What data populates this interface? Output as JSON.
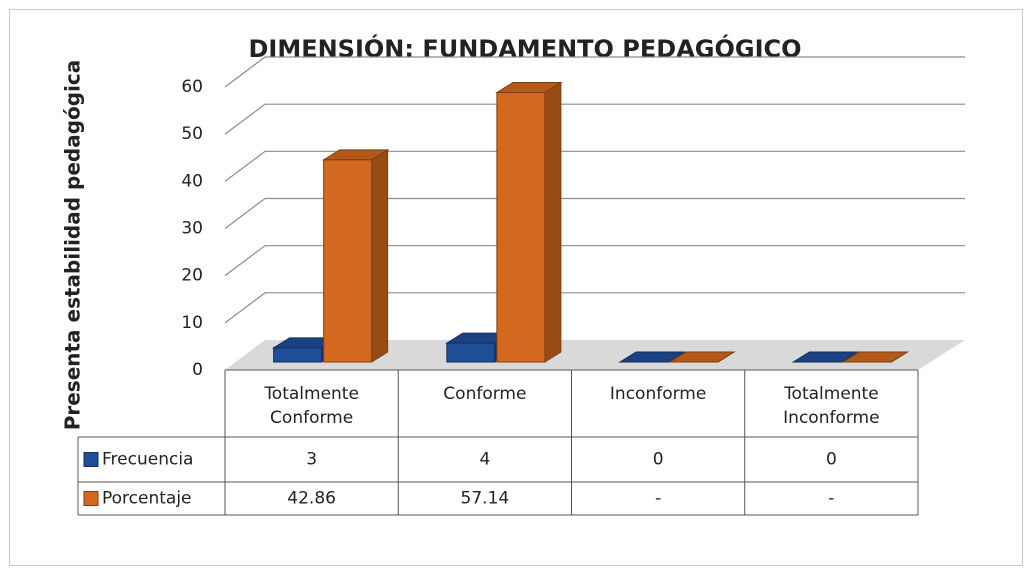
{
  "chart_data": {
    "type": "bar3d",
    "title": "DIMENSIÓN: FUNDAMENTO PEDAGÓGICO",
    "ylabel": "Presenta estabilidad pedagógica",
    "categories": [
      "Totalmente Conforme",
      "Conforme",
      "Inconforme",
      "Totalmente Inconforme"
    ],
    "series": [
      {
        "name": "Frecuencia",
        "color": "#1f4e99",
        "values": [
          3,
          4,
          0,
          0
        ]
      },
      {
        "name": "Porcentaje",
        "color": "#d2691e",
        "values": [
          42.86,
          57.14,
          0,
          0
        ],
        "value_labels": [
          "42.86",
          "57.14",
          "-",
          "-"
        ]
      }
    ],
    "ylim": [
      0,
      60
    ],
    "yticks": [
      0,
      10,
      20,
      30,
      40,
      50,
      60
    ],
    "grid": true
  }
}
